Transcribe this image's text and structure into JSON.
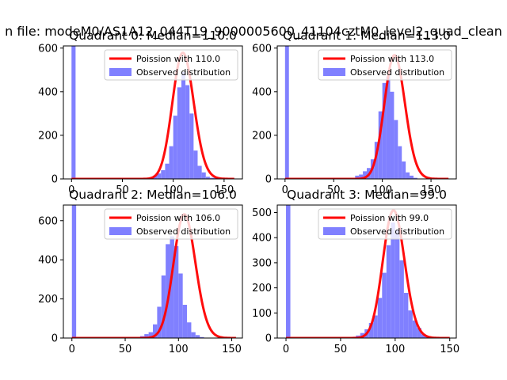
{
  "figure": {
    "suptitle": "n file: modeM0/AS1A12_044T19_9000005600_41104cztM0_level2_quad_clean"
  },
  "colors": {
    "poisson": "#ff0000",
    "observed": "#8080ff"
  },
  "chart_data": [
    {
      "type": "bar",
      "title": "Quadrant 0: Median=110.0",
      "legend_position": "top-right",
      "legend": [
        "Poission with 110.0",
        "Observed distribution"
      ],
      "xlim": [
        -8,
        168
      ],
      "ylim": [
        0,
        610
      ],
      "xticks": [
        0,
        50,
        100,
        150
      ],
      "yticks": [
        0,
        200,
        400,
        600
      ],
      "hist": {
        "x_start": 0,
        "bin_width": 4,
        "counts": [
          610,
          0,
          0,
          0,
          0,
          0,
          0,
          0,
          0,
          0,
          0,
          0,
          0,
          0,
          0,
          0,
          0,
          0,
          0,
          0,
          15,
          25,
          40,
          70,
          150,
          290,
          420,
          490,
          430,
          300,
          130,
          60,
          30,
          10,
          5,
          5,
          0,
          0,
          0,
          0
        ]
      },
      "poisson": {
        "mean": 110.0,
        "x_max": 160,
        "line_x0": 0
      }
    },
    {
      "type": "bar",
      "title": "Quadrant 1: Median=113.0",
      "legend_position": "top-right",
      "legend": [
        "Poission with 113.0",
        "Observed distribution"
      ],
      "xlim": [
        -8,
        176
      ],
      "ylim": [
        0,
        610
      ],
      "xticks": [
        0,
        50,
        100,
        150
      ],
      "yticks": [
        0,
        200,
        400,
        600
      ],
      "hist": {
        "x_start": 0,
        "bin_width": 4,
        "counts": [
          610,
          0,
          0,
          0,
          0,
          0,
          0,
          0,
          0,
          0,
          0,
          0,
          0,
          0,
          0,
          0,
          0,
          0,
          15,
          20,
          35,
          50,
          90,
          170,
          310,
          440,
          470,
          400,
          270,
          150,
          80,
          30,
          15,
          5,
          0,
          0,
          0,
          0,
          0,
          0,
          0,
          0
        ]
      },
      "poisson": {
        "mean": 113.0,
        "x_max": 168,
        "line_x0": 0
      }
    },
    {
      "type": "bar",
      "title": "Quadrant 2: Median=106.0",
      "legend_position": "top-right",
      "legend": [
        "Poission with 106.0",
        "Observed distribution"
      ],
      "xlim": [
        -8,
        160
      ],
      "ylim": [
        0,
        680
      ],
      "xticks": [
        0,
        50,
        100,
        150
      ],
      "yticks": [
        0,
        200,
        400,
        600
      ],
      "hist": {
        "x_start": 0,
        "bin_width": 4,
        "counts": [
          680,
          0,
          0,
          0,
          0,
          0,
          0,
          0,
          0,
          0,
          0,
          0,
          0,
          0,
          0,
          0,
          10,
          20,
          30,
          70,
          160,
          320,
          480,
          520,
          470,
          330,
          170,
          80,
          30,
          15,
          5,
          0,
          0,
          0,
          0,
          0,
          0,
          0
        ]
      },
      "poisson": {
        "mean": 106.0,
        "x_max": 154,
        "line_x0": 0
      }
    },
    {
      "type": "bar",
      "title": "Quadrant 3: Median=99.0",
      "legend_position": "top-right",
      "legend": [
        "Poission with 99.0",
        "Observed distribution"
      ],
      "xlim": [
        -8,
        156
      ],
      "ylim": [
        0,
        530
      ],
      "xticks": [
        0,
        50,
        100,
        150
      ],
      "yticks": [
        0,
        100,
        200,
        300,
        400,
        500
      ],
      "hist": {
        "x_start": 0,
        "bin_width": 4,
        "counts": [
          530,
          0,
          0,
          0,
          0,
          0,
          0,
          0,
          0,
          0,
          0,
          0,
          0,
          0,
          0,
          5,
          10,
          20,
          35,
          60,
          90,
          160,
          260,
          370,
          460,
          430,
          310,
          180,
          110,
          70,
          40,
          15,
          5,
          0,
          0,
          0,
          0,
          0
        ]
      },
      "poisson": {
        "mean": 99.0,
        "x_max": 150,
        "line_x0": 0
      }
    }
  ]
}
